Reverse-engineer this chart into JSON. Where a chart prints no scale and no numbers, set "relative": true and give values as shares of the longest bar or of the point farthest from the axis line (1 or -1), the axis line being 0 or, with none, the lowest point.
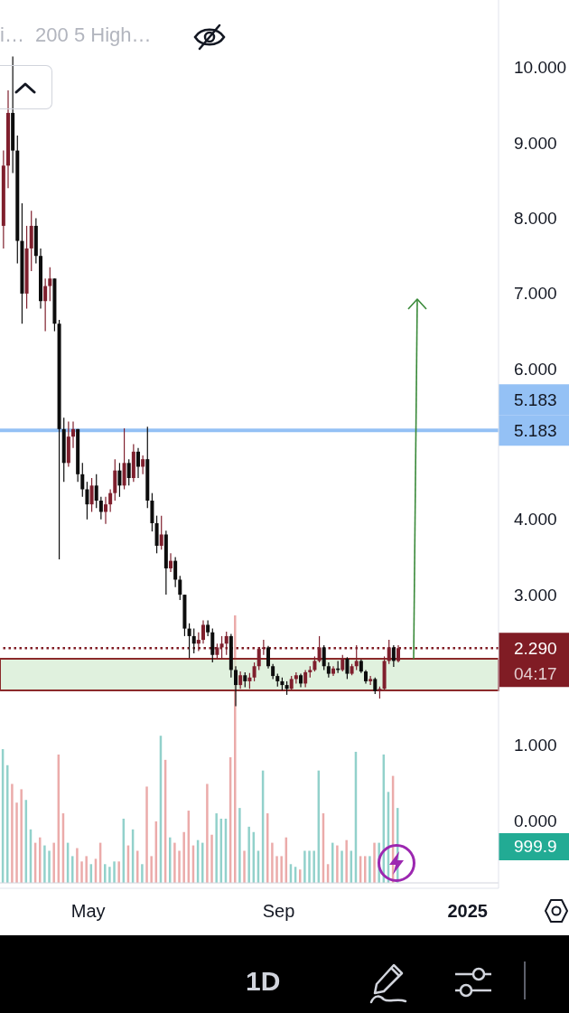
{
  "chart_data": [
    {
      "type": "candlestick",
      "x": [
        "2024-03-07",
        "2024-03-10",
        "2024-03-13",
        "2024-03-16",
        "2024-03-19",
        "2024-03-22",
        "2024-03-25",
        "2024-03-28",
        "2024-03-31",
        "2024-04-03",
        "2024-04-06",
        "2024-04-09",
        "2024-04-12",
        "2024-04-15",
        "2024-04-18",
        "2024-04-21",
        "2024-04-24",
        "2024-04-27",
        "2024-04-30",
        "2024-05-03",
        "2024-05-06",
        "2024-05-09",
        "2024-05-12",
        "2024-05-15",
        "2024-05-18",
        "2024-05-21",
        "2024-05-24",
        "2024-05-27",
        "2024-05-30",
        "2024-06-02",
        "2024-06-05",
        "2024-06-08",
        "2024-06-11",
        "2024-06-14",
        "2024-06-17",
        "2024-06-20",
        "2024-06-23",
        "2024-06-26",
        "2024-06-29",
        "2024-07-02",
        "2024-07-05",
        "2024-07-08",
        "2024-07-11",
        "2024-07-14",
        "2024-07-17",
        "2024-07-20",
        "2024-07-23",
        "2024-07-26",
        "2024-07-29",
        "2024-08-01",
        "2024-08-04",
        "2024-08-07",
        "2024-08-10",
        "2024-08-13",
        "2024-08-16",
        "2024-08-19",
        "2024-08-22",
        "2024-08-25",
        "2024-08-28",
        "2024-08-31",
        "2024-09-03",
        "2024-09-06",
        "2024-09-09",
        "2024-09-12",
        "2024-09-15",
        "2024-09-18",
        "2024-09-21",
        "2024-09-24",
        "2024-09-27",
        "2024-09-30",
        "2024-10-03",
        "2024-10-06",
        "2024-10-09",
        "2024-10-12",
        "2024-10-15",
        "2024-10-18",
        "2024-10-21",
        "2024-10-24",
        "2024-10-27",
        "2024-10-30",
        "2024-11-02",
        "2024-11-05",
        "2024-11-08",
        "2024-11-11",
        "2024-11-14",
        "2024-11-17"
      ],
      "ohlc": [
        [
          7.9,
          8.9,
          7.6,
          8.7
        ],
        [
          8.7,
          9.7,
          8.4,
          9.4
        ],
        [
          9.4,
          10.15,
          8.6,
          8.9
        ],
        [
          8.9,
          9.1,
          7.4,
          7.7
        ],
        [
          7.7,
          8.2,
          6.6,
          7.0
        ],
        [
          7.0,
          7.9,
          6.8,
          7.6
        ],
        [
          7.6,
          8.1,
          7.3,
          7.9
        ],
        [
          7.9,
          8.0,
          7.4,
          7.5
        ],
        [
          7.5,
          7.6,
          6.8,
          6.9
        ],
        [
          6.9,
          7.2,
          6.5,
          7.1
        ],
        [
          7.1,
          7.35,
          6.9,
          7.2
        ],
        [
          7.2,
          7.2,
          6.5,
          6.6
        ],
        [
          6.6,
          6.65,
          3.47,
          5.2
        ],
        [
          5.2,
          5.35,
          4.5,
          4.75
        ],
        [
          4.75,
          5.3,
          4.7,
          5.1
        ],
        [
          5.1,
          5.3,
          4.95,
          5.2
        ],
        [
          5.2,
          5.2,
          4.5,
          4.6
        ],
        [
          4.6,
          4.75,
          4.3,
          4.4
        ],
        [
          4.4,
          4.5,
          4.0,
          4.2
        ],
        [
          4.2,
          4.55,
          4.1,
          4.45
        ],
        [
          4.45,
          4.6,
          4.15,
          4.25
        ],
        [
          4.25,
          4.3,
          4.0,
          4.1
        ],
        [
          4.1,
          4.3,
          3.94,
          4.2
        ],
        [
          4.2,
          4.4,
          4.1,
          4.35
        ],
        [
          4.35,
          4.8,
          4.25,
          4.65
        ],
        [
          4.65,
          4.75,
          4.3,
          4.45
        ],
        [
          4.45,
          5.21,
          4.4,
          4.75
        ],
        [
          4.75,
          4.8,
          4.45,
          4.55
        ],
        [
          4.55,
          5.0,
          4.5,
          4.9
        ],
        [
          4.9,
          4.95,
          4.55,
          4.7
        ],
        [
          4.7,
          4.85,
          4.6,
          4.8
        ],
        [
          4.8,
          5.23,
          4.15,
          4.25
        ],
        [
          4.25,
          4.35,
          3.84,
          3.95
        ],
        [
          3.95,
          4.05,
          3.55,
          3.65
        ],
        [
          3.65,
          4.05,
          3.6,
          3.8
        ],
        [
          3.8,
          3.85,
          3.0,
          3.35
        ],
        [
          3.35,
          3.55,
          3.3,
          3.45
        ],
        [
          3.45,
          3.5,
          3.1,
          3.2
        ],
        [
          3.2,
          3.25,
          2.93,
          3.0
        ],
        [
          3.0,
          3.0,
          2.45,
          2.55
        ],
        [
          2.55,
          2.62,
          2.16,
          2.45
        ],
        [
          2.45,
          2.55,
          2.22,
          2.35
        ],
        [
          2.35,
          2.5,
          2.25,
          2.4
        ],
        [
          2.4,
          2.66,
          2.35,
          2.6
        ],
        [
          2.6,
          2.66,
          2.45,
          2.5
        ],
        [
          2.5,
          2.55,
          2.1,
          2.2
        ],
        [
          2.2,
          2.35,
          2.15,
          2.3
        ],
        [
          2.3,
          2.45,
          2.15,
          2.35
        ],
        [
          2.35,
          2.51,
          2.2,
          2.45
        ],
        [
          2.45,
          2.48,
          1.9,
          2.0
        ],
        [
          2.0,
          2.05,
          1.52,
          1.8
        ],
        [
          1.8,
          1.98,
          1.75,
          1.93
        ],
        [
          1.93,
          1.97,
          1.77,
          1.85
        ],
        [
          1.85,
          1.96,
          1.75,
          1.9
        ],
        [
          1.9,
          2.1,
          1.85,
          2.05
        ],
        [
          2.05,
          2.3,
          2.0,
          2.28
        ],
        [
          2.28,
          2.4,
          2.2,
          2.3
        ],
        [
          2.3,
          2.32,
          2.02,
          2.05
        ],
        [
          2.05,
          2.08,
          1.88,
          1.92
        ],
        [
          1.92,
          1.95,
          1.78,
          1.85
        ],
        [
          1.85,
          1.9,
          1.73,
          1.8
        ],
        [
          1.8,
          1.85,
          1.67,
          1.75
        ],
        [
          1.75,
          1.92,
          1.73,
          1.88
        ],
        [
          1.88,
          1.97,
          1.82,
          1.93
        ],
        [
          1.93,
          1.95,
          1.77,
          1.82
        ],
        [
          1.82,
          2.0,
          1.77,
          1.97
        ],
        [
          1.97,
          2.05,
          1.9,
          2.0
        ],
        [
          2.0,
          2.18,
          1.98,
          2.12
        ],
        [
          2.12,
          2.45,
          2.1,
          2.3
        ],
        [
          2.3,
          2.33,
          2.0,
          2.05
        ],
        [
          2.05,
          2.1,
          1.9,
          1.95
        ],
        [
          1.95,
          2.05,
          1.92,
          2.02
        ],
        [
          2.02,
          2.12,
          1.96,
          2.0
        ],
        [
          2.0,
          2.2,
          1.98,
          2.15
        ],
        [
          2.15,
          2.17,
          1.88,
          1.95
        ],
        [
          1.95,
          2.08,
          1.93,
          2.05
        ],
        [
          2.05,
          2.33,
          2.0,
          2.12
        ],
        [
          2.12,
          2.14,
          1.96,
          1.98
        ],
        [
          1.98,
          2.0,
          1.82,
          1.85
        ],
        [
          1.85,
          1.92,
          1.8,
          1.88
        ],
        [
          1.88,
          1.9,
          1.68,
          1.72
        ],
        [
          1.72,
          1.78,
          1.62,
          1.75
        ],
        [
          1.75,
          2.18,
          1.74,
          2.12
        ],
        [
          2.12,
          2.4,
          2.08,
          2.3
        ],
        [
          2.3,
          2.33,
          2.04,
          2.12
        ],
        [
          2.12,
          2.33,
          2.1,
          2.29
        ]
      ],
      "colors": [
        "#7f1f2d",
        "#7f1f2d",
        "#0d0d0d",
        "#0d0d0d",
        "#0d0d0d",
        "#7f1f2d",
        "#7f1f2d",
        "#0d0d0d",
        "#0d0d0d",
        "#7f1f2d",
        "#7f1f2d",
        "#0d0d0d",
        "#0d0d0d",
        "#0d0d0d",
        "#7f1f2d",
        "#7f1f2d",
        "#0d0d0d",
        "#0d0d0d",
        "#0d0d0d",
        "#7f1f2d",
        "#0d0d0d",
        "#0d0d0d",
        "#7f1f2d",
        "#7f1f2d",
        "#7f1f2d",
        "#0d0d0d",
        "#7f1f2d",
        "#0d0d0d",
        "#7f1f2d",
        "#0d0d0d",
        "#7f1f2d",
        "#0d0d0d",
        "#0d0d0d",
        "#0d0d0d",
        "#7f1f2d",
        "#0d0d0d",
        "#7f1f2d",
        "#0d0d0d",
        "#0d0d0d",
        "#0d0d0d",
        "#0d0d0d",
        "#0d0d0d",
        "#7f1f2d",
        "#7f1f2d",
        "#0d0d0d",
        "#0d0d0d",
        "#7f1f2d",
        "#7f1f2d",
        "#7f1f2d",
        "#0d0d0d",
        "#0d0d0d",
        "#7f1f2d",
        "#0d0d0d",
        "#7f1f2d",
        "#7f1f2d",
        "#7f1f2d",
        "#7f1f2d",
        "#0d0d0d",
        "#0d0d0d",
        "#0d0d0d",
        "#0d0d0d",
        "#0d0d0d",
        "#7f1f2d",
        "#7f1f2d",
        "#0d0d0d",
        "#7f1f2d",
        "#7f1f2d",
        "#7f1f2d",
        "#7f1f2d",
        "#0d0d0d",
        "#0d0d0d",
        "#7f1f2d",
        "#0d0d0d",
        "#7f1f2d",
        "#0d0d0d",
        "#7f1f2d",
        "#7f1f2d",
        "#0d0d0d",
        "#0d0d0d",
        "#7f1f2d",
        "#0d0d0d",
        "#7f1f2d",
        "#7f1f2d",
        "#7f1f2d",
        "#0d0d0d",
        "#7f1f2d"
      ],
      "xlim": [
        "2024-03-05",
        "2025-01-21"
      ],
      "xticks": [
        {
          "value": "2024-05-01",
          "label": "May"
        },
        {
          "value": "2024-09-01",
          "label": "Sep"
        },
        {
          "value": "2025-01-01",
          "label": "2025"
        }
      ],
      "ylim": [
        -0.9,
        10.9
      ],
      "yticks": [
        {
          "value": 0,
          "label": "0.000"
        },
        {
          "value": 1,
          "label": "1.000"
        },
        {
          "value": 3,
          "label": "3.000"
        },
        {
          "value": 4,
          "label": "4.000"
        },
        {
          "value": 6,
          "label": "6.000"
        },
        {
          "value": 7,
          "label": "7.000"
        },
        {
          "value": 8,
          "label": "8.000"
        },
        {
          "value": 9,
          "label": "9.000"
        },
        {
          "value": 10,
          "label": "10.000"
        }
      ],
      "ref_lines": [
        {
          "axis": "y",
          "value": 5.183,
          "label": "5.183",
          "color": "#94c1f5",
          "line_style": "solid"
        },
        {
          "axis": "y",
          "value": 2.29,
          "label": "2.290",
          "color": "#801c24",
          "line_style": "dotted"
        }
      ],
      "bands": [
        {
          "axis": "y",
          "from": 1.73,
          "to": 2.15,
          "color": "#d6ecd3"
        }
      ],
      "annotations": [
        "i…  200 5 High…",
        "04:17",
        "1D",
        "5.183"
      ]
    },
    {
      "type": "bar",
      "relative": true,
      "tick_labels": false,
      "x": [
        "2024-03-07",
        "2024-03-10",
        "2024-03-13",
        "2024-03-16",
        "2024-03-19",
        "2024-03-22",
        "2024-03-25",
        "2024-03-28",
        "2024-03-31",
        "2024-04-03",
        "2024-04-06",
        "2024-04-09",
        "2024-04-12",
        "2024-04-15",
        "2024-04-18",
        "2024-04-21",
        "2024-04-24",
        "2024-04-27",
        "2024-04-30",
        "2024-05-03",
        "2024-05-06",
        "2024-05-09",
        "2024-05-12",
        "2024-05-15",
        "2024-05-18",
        "2024-05-21",
        "2024-05-24",
        "2024-05-27",
        "2024-05-30",
        "2024-06-02",
        "2024-06-05",
        "2024-06-08",
        "2024-06-11",
        "2024-06-14",
        "2024-06-17",
        "2024-06-20",
        "2024-06-23",
        "2024-06-26",
        "2024-06-29",
        "2024-07-02",
        "2024-07-05",
        "2024-07-08",
        "2024-07-11",
        "2024-07-14",
        "2024-07-17",
        "2024-07-20",
        "2024-07-23",
        "2024-07-26",
        "2024-07-29",
        "2024-08-01",
        "2024-08-04",
        "2024-08-07",
        "2024-08-10",
        "2024-08-13",
        "2024-08-16",
        "2024-08-19",
        "2024-08-22",
        "2024-08-25",
        "2024-08-28",
        "2024-08-31",
        "2024-09-03",
        "2024-09-06",
        "2024-09-09",
        "2024-09-12",
        "2024-09-15",
        "2024-09-18",
        "2024-09-21",
        "2024-09-24",
        "2024-09-27",
        "2024-09-30",
        "2024-10-03",
        "2024-10-06",
        "2024-10-09",
        "2024-10-12",
        "2024-10-15",
        "2024-10-18",
        "2024-10-21",
        "2024-10-24",
        "2024-10-27",
        "2024-10-30",
        "2024-11-02",
        "2024-11-05",
        "2024-11-08",
        "2024-11-11",
        "2024-11-14",
        "2024-11-17"
      ],
      "values": [
        0.5,
        0.44,
        0.37,
        0.3,
        0.35,
        0.31,
        0.2,
        0.15,
        0.17,
        0.14,
        0.12,
        0.15,
        0.48,
        0.26,
        0.15,
        0.1,
        0.13,
        0.08,
        0.1,
        0.07,
        0.09,
        0.15,
        0.07,
        0.06,
        0.08,
        0.08,
        0.24,
        0.14,
        0.2,
        0.12,
        0.07,
        0.36,
        0.1,
        0.23,
        0.55,
        0.46,
        0.17,
        0.15,
        0.12,
        0.19,
        0.27,
        0.14,
        0.16,
        0.15,
        0.37,
        0.18,
        0.26,
        0.24,
        0.24,
        0.47,
        1.0,
        0.28,
        0.12,
        0.21,
        0.19,
        0.12,
        0.42,
        0.26,
        0.15,
        0.1,
        0.1,
        0.17,
        0.07,
        0.06,
        0.05,
        0.12,
        0.12,
        0.12,
        0.42,
        0.26,
        0.07,
        0.15,
        0.14,
        0.12,
        0.16,
        0.12,
        0.49,
        0.1,
        0.1,
        0.1,
        0.15,
        0.15,
        0.48,
        0.34,
        0.4,
        0.28
      ],
      "colors": [
        "#92d1cb",
        "#92d1cb",
        "#ebabaa",
        "#ebabaa",
        "#ebabaa",
        "#92d1cb",
        "#92d1cb",
        "#ebabaa",
        "#ebabaa",
        "#92d1cb",
        "#92d1cb",
        "#ebabaa",
        "#ebabaa",
        "#ebabaa",
        "#92d1cb",
        "#92d1cb",
        "#ebabaa",
        "#ebabaa",
        "#ebabaa",
        "#92d1cb",
        "#ebabaa",
        "#ebabaa",
        "#92d1cb",
        "#92d1cb",
        "#92d1cb",
        "#ebabaa",
        "#92d1cb",
        "#ebabaa",
        "#92d1cb",
        "#ebabaa",
        "#92d1cb",
        "#ebabaa",
        "#ebabaa",
        "#ebabaa",
        "#92d1cb",
        "#ebabaa",
        "#92d1cb",
        "#ebabaa",
        "#ebabaa",
        "#ebabaa",
        "#ebabaa",
        "#ebabaa",
        "#92d1cb",
        "#92d1cb",
        "#ebabaa",
        "#ebabaa",
        "#92d1cb",
        "#92d1cb",
        "#92d1cb",
        "#ebabaa",
        "#ebabaa",
        "#92d1cb",
        "#ebabaa",
        "#92d1cb",
        "#92d1cb",
        "#92d1cb",
        "#92d1cb",
        "#ebabaa",
        "#ebabaa",
        "#ebabaa",
        "#ebabaa",
        "#ebabaa",
        "#92d1cb",
        "#92d1cb",
        "#ebabaa",
        "#92d1cb",
        "#92d1cb",
        "#92d1cb",
        "#92d1cb",
        "#ebabaa",
        "#ebabaa",
        "#92d1cb",
        "#ebabaa",
        "#92d1cb",
        "#ebabaa",
        "#92d1cb",
        "#92d1cb",
        "#ebabaa",
        "#ebabaa",
        "#92d1cb",
        "#ebabaa",
        "#92d1cb",
        "#92d1cb",
        "#92d1cb",
        "#ebabaa",
        "#92d1cb"
      ],
      "xlim": [
        "2024-03-05",
        "2025-01-21"
      ],
      "annotations": [
        "999.9"
      ]
    }
  ]
}
